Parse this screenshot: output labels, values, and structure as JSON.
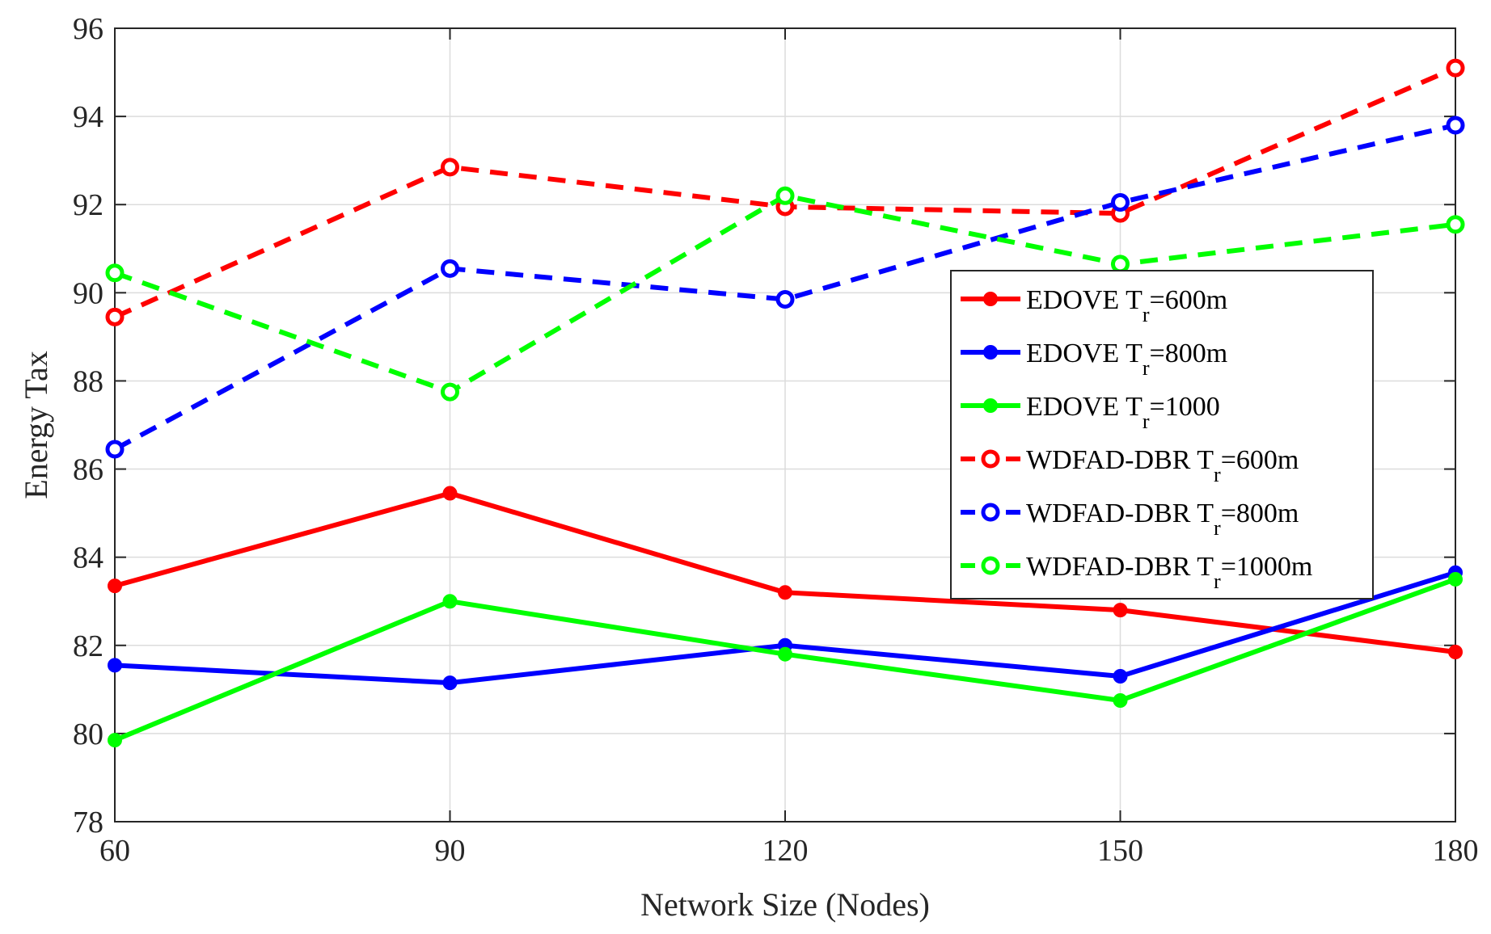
{
  "chart_data": {
    "type": "line",
    "title": "",
    "xlabel": "Network Size (Nodes)",
    "ylabel": "Energy Tax",
    "x": [
      60,
      90,
      120,
      150,
      180
    ],
    "xlim": [
      60,
      180
    ],
    "ylim": [
      78,
      96
    ],
    "xticks": [
      60,
      90,
      120,
      150,
      180
    ],
    "yticks": [
      78,
      80,
      82,
      84,
      86,
      88,
      90,
      92,
      94,
      96
    ],
    "grid": true,
    "legend_position": "right",
    "series": [
      {
        "name": "EDOVE T",
        "sub": "r",
        "suffix": "=600m",
        "color": "#ff0000",
        "style": "solid",
        "marker": "filled",
        "values": [
          83.35,
          85.45,
          83.2,
          82.8,
          81.85
        ]
      },
      {
        "name": "EDOVE T",
        "sub": "r",
        "suffix": "=800m",
        "color": "#0000ff",
        "style": "solid",
        "marker": "filled",
        "values": [
          81.55,
          81.15,
          82.0,
          81.3,
          83.65
        ]
      },
      {
        "name": "EDOVE T",
        "sub": "r",
        "suffix": "=1000",
        "color": "#00ff00",
        "style": "solid",
        "marker": "filled",
        "values": [
          79.85,
          83.0,
          81.8,
          80.75,
          83.5
        ]
      },
      {
        "name": "WDFAD-DBR T",
        "sub": "r",
        "suffix": "=600m",
        "color": "#ff0000",
        "style": "dashed",
        "marker": "open",
        "values": [
          89.45,
          92.85,
          91.95,
          91.8,
          95.1
        ]
      },
      {
        "name": "WDFAD-DBR T",
        "sub": "r",
        "suffix": "=800m",
        "color": "#0000ff",
        "style": "dashed",
        "marker": "open",
        "values": [
          86.45,
          90.55,
          89.85,
          92.05,
          93.8
        ]
      },
      {
        "name": "WDFAD-DBR T",
        "sub": "r",
        "suffix": "=1000m",
        "color": "#00ff00",
        "style": "dashed",
        "marker": "open",
        "values": [
          90.45,
          87.75,
          92.2,
          90.65,
          91.55
        ]
      }
    ]
  }
}
